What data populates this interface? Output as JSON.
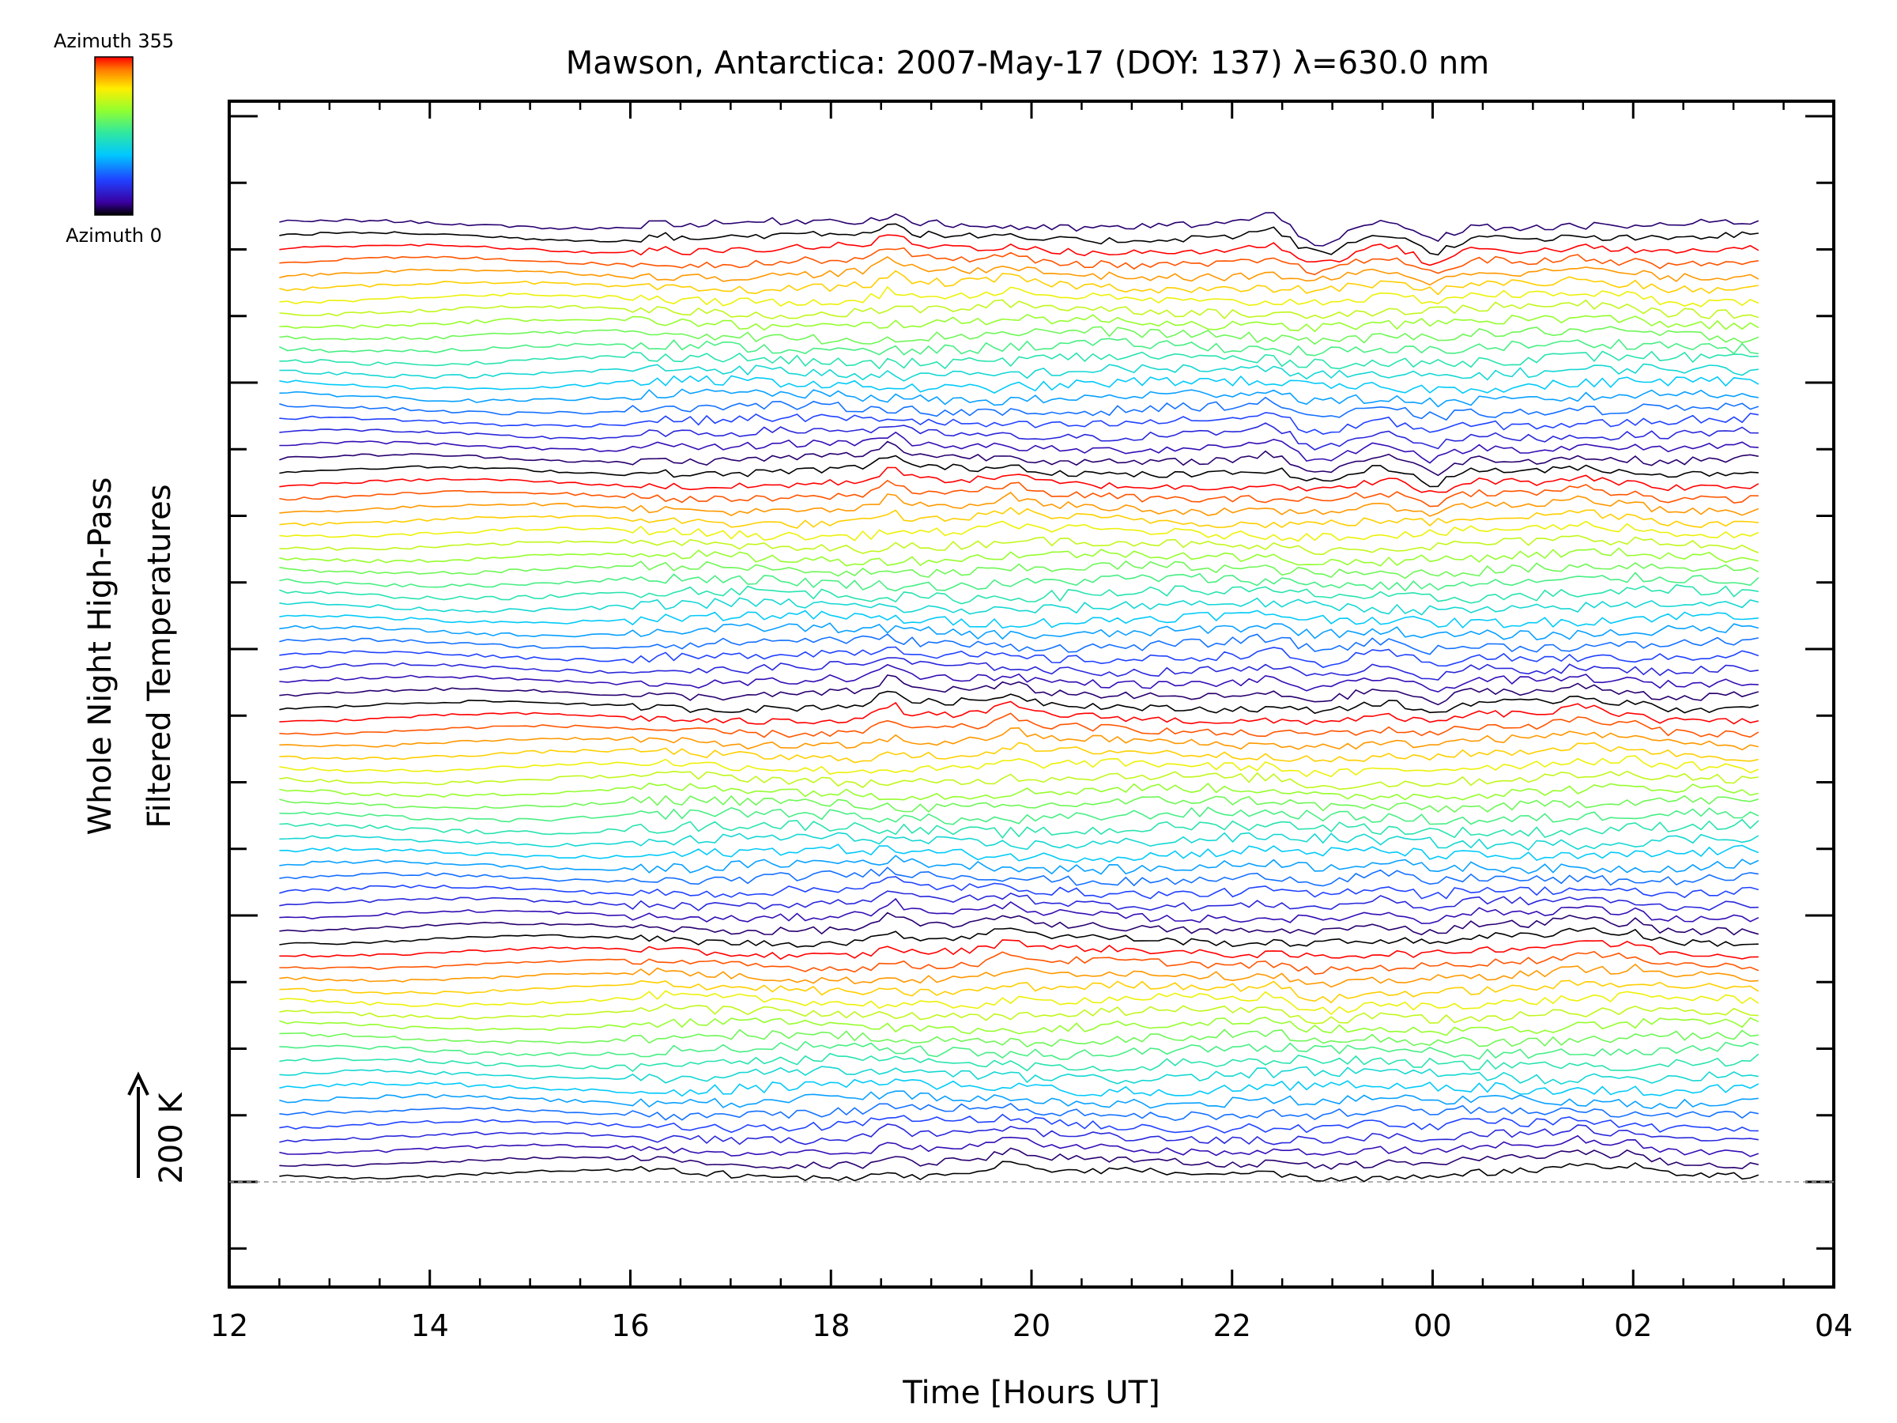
{
  "chart_data": {
    "type": "line",
    "title": "Mawson, Antarctica: 2007-May-17 (DOY: 137) λ=630.0 nm",
    "xlabel": "Time [Hours UT]",
    "ylabel_line1": "Whole Night High-Pass",
    "ylabel_line2": "Filtered Temperatures",
    "scale_label": "200 K",
    "x_tick_labels": [
      "12",
      "14",
      "16",
      "18",
      "20",
      "22",
      "00",
      "02",
      "04"
    ],
    "x_ticks_hours": [
      12,
      14,
      16,
      18,
      20,
      22,
      24,
      26,
      28
    ],
    "xlim_hours": [
      12,
      28
    ],
    "data_range_hours": [
      12.5,
      27.25
    ],
    "y_major_tick_count": 4,
    "y_minor_per_major": 4,
    "colorbar": {
      "top_label": "Azimuth 355",
      "bottom_label": "Azimuth 0"
    },
    "num_series": 78,
    "trace_spacing_K": 50,
    "grid": false,
    "baseline_dashed": true,
    "colors": {
      "axis": "#000000",
      "baseline": "#999999",
      "background": "#ffffff"
    }
  }
}
